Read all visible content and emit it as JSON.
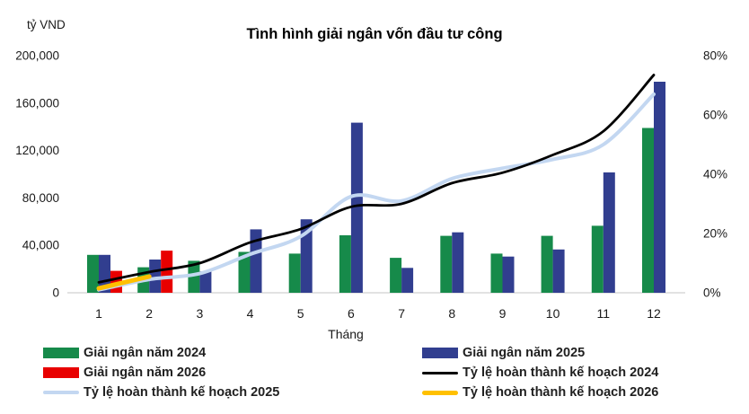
{
  "chart_data": {
    "type": "combo-bar-line",
    "title": "Tình hình giải ngân vốn đầu tư công",
    "xlabel": "Tháng",
    "categories": [
      1,
      2,
      3,
      4,
      5,
      6,
      7,
      8,
      9,
      10,
      11,
      12
    ],
    "left_axis": {
      "unit": "tỷ VND",
      "tick_values": [
        0,
        40000,
        80000,
        120000,
        160000,
        200000
      ],
      "tick_labels": [
        "0",
        "40,000",
        "80,000",
        "120,000",
        "160,000",
        "200,000"
      ],
      "range": [
        0,
        200000
      ]
    },
    "right_axis": {
      "tick_values": [
        0,
        20,
        40,
        60,
        80
      ],
      "tick_labels": [
        "0%",
        "20%",
        "40%",
        "60%",
        "80%"
      ],
      "range": [
        0,
        80
      ]
    },
    "grid": "off",
    "legend_position": "bottom",
    "bar_series": [
      {
        "name": "Giải ngân năm 2024",
        "year": "2024",
        "color": "#168a4a",
        "values": [
          32000,
          21500,
          27000,
          34500,
          33000,
          48500,
          29500,
          48000,
          33000,
          48000,
          56500,
          139000
        ]
      },
      {
        "name": "Giải ngân năm 2025",
        "year": "2025",
        "color": "#313e8f",
        "values": [
          32000,
          28000,
          18000,
          53500,
          62000,
          143500,
          21000,
          51000,
          30500,
          36500,
          101500,
          178000
        ]
      },
      {
        "name": "Giải ngân năm 2026",
        "year": "2026",
        "color": "#e80000",
        "values": [
          18500,
          35500,
          null,
          null,
          null,
          null,
          null,
          null,
          null,
          null,
          null,
          null
        ]
      }
    ],
    "line_series": [
      {
        "name": "Tỷ lệ hoàn thành kế hoạch 2025",
        "year": "2025",
        "color": "#c3d7f1",
        "width": 4,
        "values": [
          1,
          4.5,
          6.5,
          13,
          19,
          32.5,
          31,
          38.5,
          42,
          45,
          50,
          67
        ]
      },
      {
        "name": "Tỷ lệ hoàn thành kế hoạch 2026",
        "year": "2026",
        "color": "#ffc000",
        "width": 5,
        "values": [
          1.5,
          5.5,
          null,
          null,
          null,
          null,
          null,
          null,
          null,
          null,
          null,
          null
        ]
      },
      {
        "name": "Tỷ lệ hoàn thành kế hoạch 2024",
        "year": "2024",
        "color": "#000000",
        "width": 2.8,
        "values": [
          3.5,
          7,
          10,
          17,
          21.5,
          29,
          30,
          37,
          40.5,
          46.5,
          54.5,
          73.5
        ]
      }
    ]
  },
  "legend": {
    "items": [
      {
        "name": "giai-ngan-nam-2024",
        "label": "Giải ngân năm 2024",
        "swatch": "bar",
        "color": "#168a4a",
        "thickness": 12
      },
      {
        "name": "giai-ngan-nam-2025",
        "label": "Giải ngân năm 2025",
        "swatch": "bar",
        "color": "#313e8f",
        "thickness": 12
      },
      {
        "name": "giai-ngan-nam-2026",
        "label": "Giải ngân năm 2026",
        "swatch": "bar",
        "color": "#e80000",
        "thickness": 12
      },
      {
        "name": "ty-le-hoan-thanh-ke-hoach-2024",
        "label": "Tỷ lệ hoàn thành kế hoạch 2024",
        "swatch": "line",
        "color": "#000000",
        "thickness": 3
      },
      {
        "name": "ty-le-hoan-thanh-ke-hoach-2025",
        "label": "Tỷ lệ hoàn thành kế hoạch 2025",
        "swatch": "line",
        "color": "#c3d7f1",
        "thickness": 4
      },
      {
        "name": "ty-le-hoan-thanh-ke-hoach-2026",
        "label": "Tỷ lệ hoàn thành kế hoạch 2026",
        "swatch": "line",
        "color": "#ffc000",
        "thickness": 5
      }
    ]
  }
}
